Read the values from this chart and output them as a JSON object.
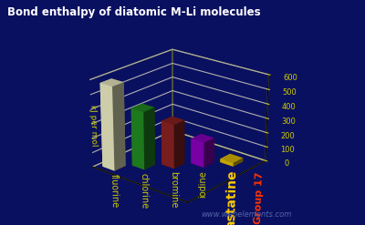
{
  "title": "Bond enthalpy of diatomic M-Li molecules",
  "ylabel": "kJ per mol",
  "group_label": "Group 17",
  "watermark": "www.webelements.com",
  "categories": [
    "fluorine",
    "chlorine",
    "bromine",
    "iodine",
    "astatine"
  ],
  "values": [
    577,
    400,
    305,
    175,
    25
  ],
  "bar_colors": [
    "#e8e8c0",
    "#228822",
    "#882222",
    "#8800bb",
    "#ddbb00"
  ],
  "background_color": "#0a1060",
  "grid_color": "#cccc00",
  "label_color": "#cccc00",
  "title_color": "#ffffff",
  "astatine_color": "#ffcc00",
  "group17_color": "#ff3300",
  "watermark_color": "#5566aa",
  "base_color": "#cc1111",
  "ylim": [
    0,
    600
  ],
  "yticks": [
    0,
    100,
    200,
    300,
    400,
    500,
    600
  ],
  "elev": 22,
  "azim": -50
}
